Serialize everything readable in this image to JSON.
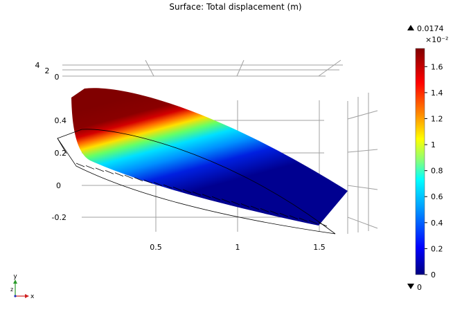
{
  "chart_data": {
    "type": "surface",
    "title": "Surface: Total displacement (m)",
    "x_ticks": [
      "0.5",
      "1",
      "1.5"
    ],
    "y_ticks": [
      "0.4",
      "0.2",
      "0",
      "-0.2"
    ],
    "z_ticks": [
      "4",
      "2",
      "0"
    ],
    "colorbar": {
      "colormap": "rainbow",
      "max_label": "0.0174",
      "min_label": "0",
      "exponent_label": "×10⁻²",
      "ticks": [
        "1.6",
        "1.4",
        "1.2",
        "1",
        "0.8",
        "0.6",
        "0.4",
        "0.2",
        "0"
      ],
      "range": [
        0,
        1.74
      ]
    },
    "axis_triad": {
      "x": "x",
      "y": "y",
      "z": "z"
    }
  }
}
